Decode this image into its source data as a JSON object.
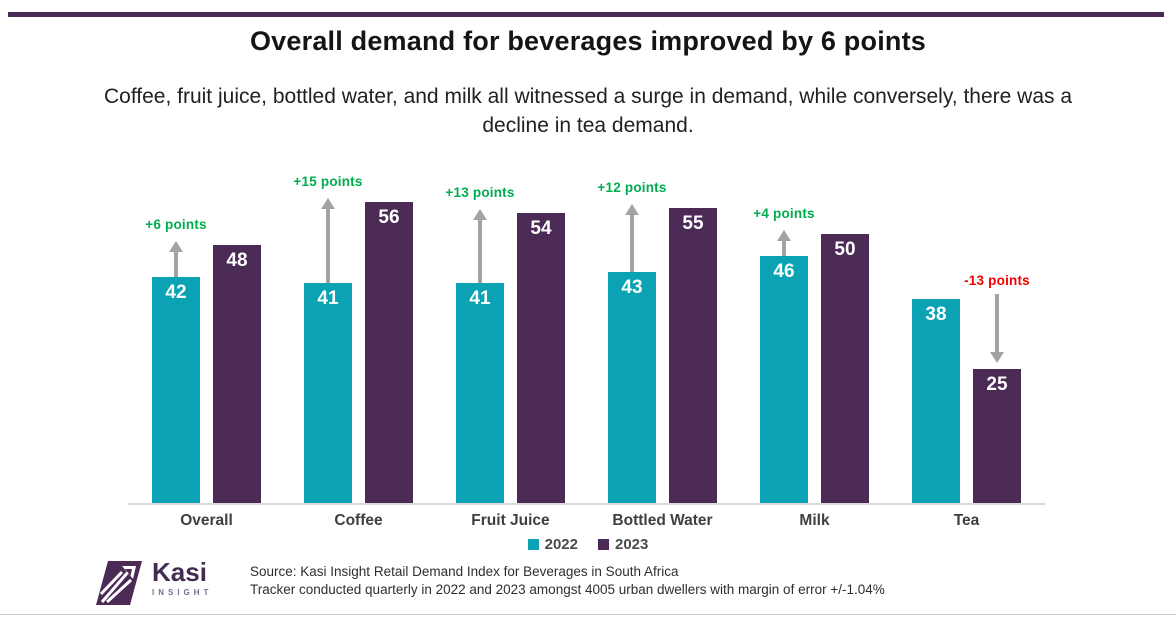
{
  "header": {
    "title": "Overall demand for beverages improved by 6 points",
    "subtitle": "Coffee, fruit juice, bottled water, and milk all witnessed a surge in demand, while conversely, there was a decline in tea demand."
  },
  "chart_data": {
    "type": "bar",
    "categories": [
      "Overall",
      "Coffee",
      "Fruit Juice",
      "Bottled Water",
      "Milk",
      "Tea"
    ],
    "series": [
      {
        "name": "2022",
        "color": "#0BA3B4",
        "values": [
          42,
          41,
          41,
          43,
          46,
          38
        ]
      },
      {
        "name": "2023",
        "color": "#4B2A55",
        "values": [
          48,
          56,
          54,
          55,
          50,
          25
        ]
      }
    ],
    "annotations": [
      {
        "text": "+6 points",
        "delta": 6,
        "color": "#00AC4E"
      },
      {
        "text": "+15 points",
        "delta": 15,
        "color": "#00AC4E"
      },
      {
        "text": "+13 points",
        "delta": 13,
        "color": "#00AC4E"
      },
      {
        "text": "+12 points",
        "delta": 12,
        "color": "#00AC4E"
      },
      {
        "text": "+4 points",
        "delta": 4,
        "color": "#00AC4E"
      },
      {
        "text": "-13 points",
        "delta": -13,
        "color": "#F40000"
      }
    ],
    "title": "Overall demand for beverages improved by 6 points",
    "xlabel": "",
    "ylabel": "",
    "ylim": [
      0,
      60
    ],
    "grid": false,
    "legend_position": "bottom",
    "arrow_color": "#A3A3A3",
    "baseline_color": "#D9D9D9"
  },
  "footer": {
    "logo": {
      "brand": "Kasi",
      "sub": "INSIGHT",
      "mark": "arrow-parallelogram",
      "color": "#4B2A55"
    },
    "source_line1": "Source: Kasi Insight Retail Demand Index for Beverages in South Africa",
    "source_line2": "Tracker conducted  quarterly in 2022  and 2023 amongst  4005 urban dwellers with margin of error +/-1.04%"
  },
  "colors": {
    "accent_rule": "#4B2A55",
    "series_2022": "#0BA3B4",
    "series_2023": "#4B2A55",
    "positive": "#00AC4E",
    "negative": "#F40000"
  }
}
